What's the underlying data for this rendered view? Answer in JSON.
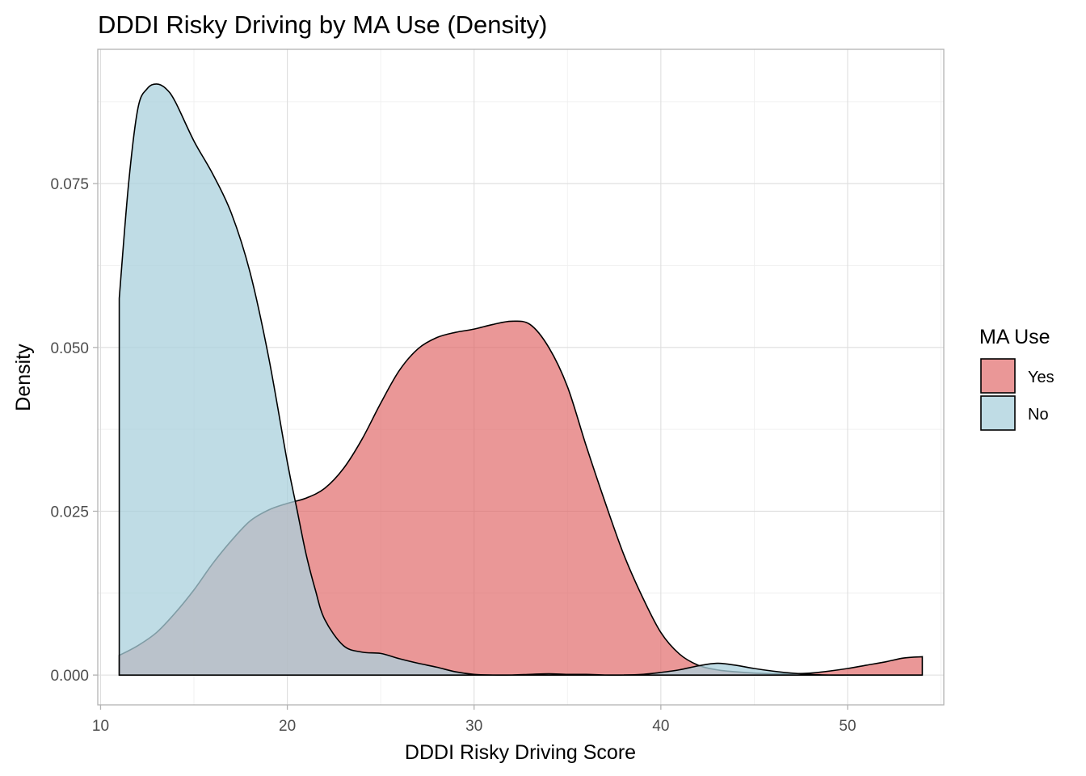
{
  "chart_data": {
    "type": "area",
    "title": "DDDI Risky Driving by MA Use (Density)",
    "xlabel": "DDDI Risky Driving Score",
    "ylabel": "Density",
    "xlim": [
      9.85,
      55.15
    ],
    "ylim": [
      -0.00455,
      0.0955
    ],
    "x_ticks": [
      10,
      20,
      30,
      40,
      50
    ],
    "x_tick_labels": [
      "10",
      "20",
      "30",
      "40",
      "50"
    ],
    "y_ticks": [
      0.0,
      0.025,
      0.05,
      0.075
    ],
    "y_tick_labels": [
      "0.000",
      "0.025",
      "0.050",
      "0.075"
    ],
    "grid": true,
    "legend": {
      "title": "MA Use",
      "placement": "right",
      "entries": [
        "Yes",
        "No"
      ]
    },
    "series": [
      {
        "name": "Yes",
        "color": "#e06666",
        "opacity": 0.68,
        "x": [
          11,
          12,
          13,
          14,
          15,
          16,
          17,
          18,
          19,
          20,
          21,
          22,
          23,
          24,
          25,
          26,
          27,
          28,
          29,
          30,
          31,
          32,
          33,
          34,
          35,
          36,
          37,
          38,
          39,
          40,
          41,
          42,
          43,
          44,
          45,
          46,
          47,
          48,
          49,
          50,
          51,
          52,
          53,
          54
        ],
        "y": [
          0.003,
          0.0045,
          0.0065,
          0.0095,
          0.013,
          0.017,
          0.0205,
          0.0235,
          0.0252,
          0.0262,
          0.027,
          0.0285,
          0.0315,
          0.036,
          0.0415,
          0.0465,
          0.0498,
          0.0515,
          0.0523,
          0.0528,
          0.0535,
          0.054,
          0.0535,
          0.05,
          0.044,
          0.035,
          0.0265,
          0.0185,
          0.012,
          0.0065,
          0.0032,
          0.0015,
          0.0008,
          0.0005,
          0.0003,
          0.0002,
          0.0002,
          0.0003,
          0.0006,
          0.001,
          0.0015,
          0.002,
          0.0026,
          0.0028
        ]
      },
      {
        "name": "No",
        "color": "#a9d0dc",
        "opacity": 0.75,
        "x": [
          11,
          11.5,
          12,
          12.5,
          13,
          13.5,
          14,
          15,
          16,
          17,
          18,
          19,
          20,
          20.5,
          21,
          21.5,
          22,
          23,
          24,
          25,
          26,
          27,
          28,
          29,
          30,
          31,
          32,
          33,
          34,
          35,
          36,
          37,
          38,
          39,
          40,
          41,
          42,
          43,
          44,
          45,
          46,
          47,
          48,
          49,
          50,
          51,
          52,
          53,
          54
        ],
        "y": [
          0.0575,
          0.075,
          0.0865,
          0.0895,
          0.0902,
          0.0895,
          0.0875,
          0.0815,
          0.0765,
          0.0705,
          0.0615,
          0.0485,
          0.0325,
          0.0255,
          0.0185,
          0.013,
          0.0085,
          0.0045,
          0.0035,
          0.0033,
          0.0025,
          0.0018,
          0.0012,
          0.0005,
          0.0001,
          0.0,
          0.0,
          0.0001,
          0.0002,
          0.0001,
          0.0001,
          0.0,
          0.0,
          0.0001,
          0.0004,
          0.0008,
          0.0014,
          0.0018,
          0.0015,
          0.001,
          0.0006,
          0.0003,
          0.0001,
          0.0,
          0.0,
          0.0,
          0.0,
          0.0,
          0.0
        ]
      }
    ]
  }
}
